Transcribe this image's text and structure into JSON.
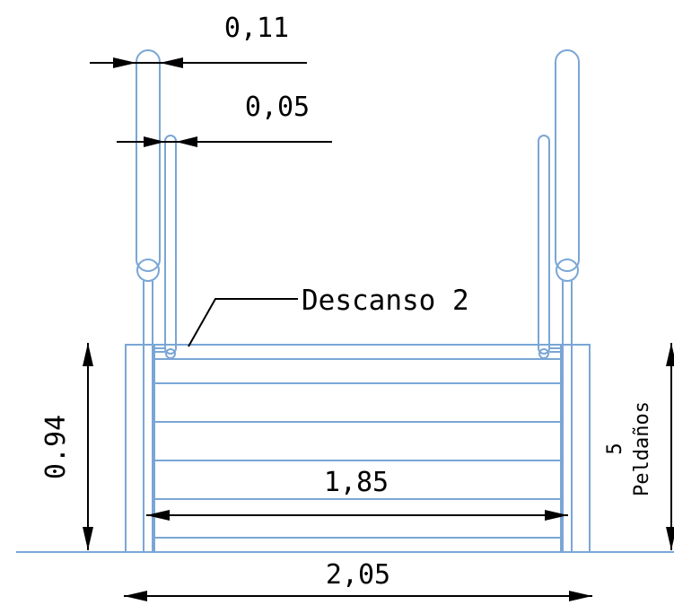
{
  "colors": {
    "geometry": "#7aa6d6",
    "dimension": "#000000",
    "background": "#ffffff"
  },
  "dimensions": {
    "handrail_width": "0,11",
    "post_width": "0,05",
    "height": "0.94",
    "inner_width": "1,85",
    "outer_width": "2,05"
  },
  "labels": {
    "landing": "Descanso 2",
    "steps_count": "5",
    "steps_word": "Peldaños"
  }
}
